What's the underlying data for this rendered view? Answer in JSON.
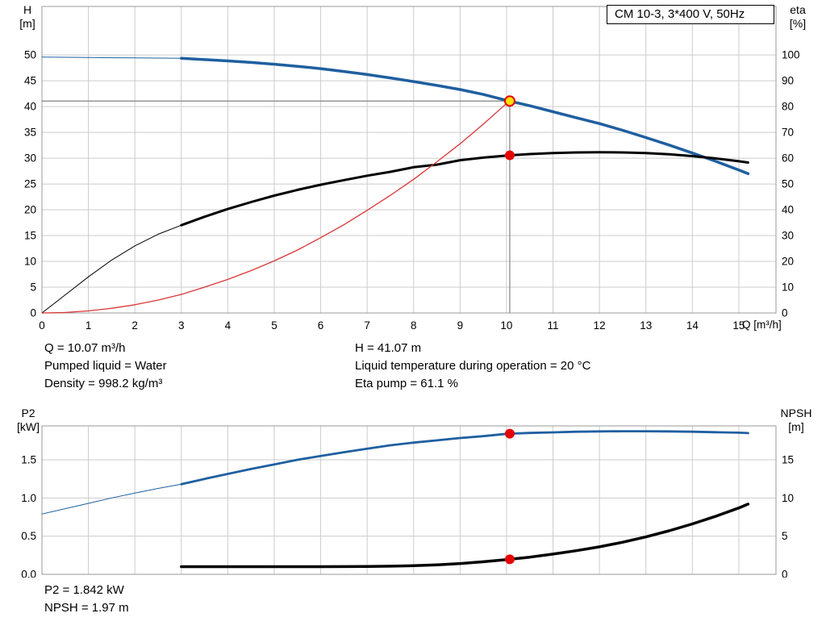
{
  "title_box": {
    "label": "CM 10-3, 3*400 V, 50Hz"
  },
  "operating_point": {
    "q": "Q = 10.07 m³/h",
    "h": "H = 41.07 m",
    "pumped_liquid": "Pumped liquid = Water",
    "liquid_temp": "Liquid temperature during operation = 20 °C",
    "density": "Density = 998.2 kg/m³",
    "eta_pump": "Eta pump = 61.1 %",
    "p2": "P2 = 1.842 kW",
    "npsh": "NPSH = 1.97 m"
  },
  "colors": {
    "curve_blue": "#1f5fa0",
    "curve_black": "#000000",
    "curve_red": "#d93636",
    "marker_red": "#e60000",
    "marker_yellow": "#ffe000",
    "grid": "#cccccc",
    "frame": "#999999",
    "crosshair": "#808080"
  },
  "chart_data": [
    {
      "type": "line",
      "title": "CM 10-3, 3*400 V, 50Hz",
      "x_axis": {
        "label": "Q [m³/h]",
        "min": 0,
        "max": 15.8,
        "decimals": 0,
        "show_tick_labels": true,
        "ticks": [
          0,
          1,
          2,
          3,
          4,
          5,
          6,
          7,
          8,
          9,
          10,
          11,
          12,
          13,
          14,
          15
        ]
      },
      "y_left": {
        "name": "H",
        "unit": "[m]",
        "min": 0,
        "max": 59.4,
        "decimals": 0,
        "ticks": [
          0,
          5,
          10,
          15,
          20,
          25,
          30,
          35,
          40,
          45,
          50
        ]
      },
      "y_right": {
        "name": "eta",
        "unit": "[%]",
        "min": 0,
        "max": 118.8,
        "decimals": 0,
        "ticks": [
          0,
          10,
          20,
          30,
          40,
          50,
          60,
          70,
          80,
          90,
          100
        ]
      },
      "crosshair": {
        "x": 10.07,
        "y": 41.07
      },
      "series": [
        {
          "name": "head-curve-thin",
          "axis": "left",
          "color": "#1f5fa0",
          "width": 1,
          "points": [
            [
              0,
              49.6
            ],
            [
              1,
              49.5
            ],
            [
              2,
              49.42
            ],
            [
              3,
              49.35
            ]
          ]
        },
        {
          "name": "head-curve",
          "axis": "left",
          "color": "#1f5fa0",
          "width": 3.5,
          "points": [
            [
              3,
              49.35
            ],
            [
              3.5,
              49.1
            ],
            [
              4,
              48.85
            ],
            [
              4.5,
              48.55
            ],
            [
              5,
              48.2
            ],
            [
              5.5,
              47.8
            ],
            [
              6,
              47.35
            ],
            [
              6.5,
              46.8
            ],
            [
              7,
              46.2
            ],
            [
              7.5,
              45.55
            ],
            [
              8,
              44.85
            ],
            [
              8.5,
              44.1
            ],
            [
              9,
              43.3
            ],
            [
              9.5,
              42.35
            ],
            [
              10,
              41.2
            ],
            [
              10.5,
              40.15
            ],
            [
              11,
              39.0
            ],
            [
              11.5,
              37.85
            ],
            [
              12,
              36.7
            ],
            [
              12.5,
              35.4
            ],
            [
              13,
              34.0
            ],
            [
              13.5,
              32.55
            ],
            [
              14,
              31.0
            ],
            [
              14.5,
              29.4
            ],
            [
              15,
              27.7
            ],
            [
              15.2,
              27.0
            ]
          ]
        },
        {
          "name": "eta-curve-thin",
          "axis": "right",
          "color": "#000000",
          "width": 1,
          "points": [
            [
              0,
              0
            ],
            [
              0.5,
              7
            ],
            [
              1,
              14
            ],
            [
              1.5,
              20.5
            ],
            [
              2,
              26
            ],
            [
              2.5,
              30.5
            ],
            [
              3,
              34
            ]
          ]
        },
        {
          "name": "eta-curve",
          "axis": "right",
          "color": "#000000",
          "width": 3,
          "points": [
            [
              3,
              34
            ],
            [
              3.5,
              37.3
            ],
            [
              4,
              40.3
            ],
            [
              4.5,
              43.0
            ],
            [
              5,
              45.5
            ],
            [
              5.5,
              47.7
            ],
            [
              6,
              49.7
            ],
            [
              6.5,
              51.5
            ],
            [
              7,
              53.2
            ],
            [
              7.5,
              54.7
            ],
            [
              8,
              56.5
            ],
            [
              8.5,
              57.5
            ],
            [
              9,
              59.2
            ],
            [
              9.5,
              60.2
            ],
            [
              10,
              61.0
            ],
            [
              10.5,
              61.6
            ],
            [
              11,
              62.0
            ],
            [
              11.5,
              62.2
            ],
            [
              12,
              62.3
            ],
            [
              12.5,
              62.2
            ],
            [
              13,
              62.0
            ],
            [
              13.5,
              61.5
            ],
            [
              14,
              60.8
            ],
            [
              14.5,
              59.9
            ],
            [
              15,
              58.8
            ],
            [
              15.2,
              58.3
            ]
          ]
        },
        {
          "name": "system-curve",
          "axis": "left",
          "color": "#d93636",
          "width": 1.3,
          "points": [
            [
              0,
              0
            ],
            [
              0.5,
              0.1
            ],
            [
              1,
              0.4
            ],
            [
              1.5,
              0.9
            ],
            [
              2,
              1.6
            ],
            [
              2.5,
              2.5
            ],
            [
              3,
              3.6
            ],
            [
              3.5,
              5.0
            ],
            [
              4,
              6.5
            ],
            [
              4.5,
              8.2
            ],
            [
              5,
              10.1
            ],
            [
              5.5,
              12.2
            ],
            [
              6,
              14.6
            ],
            [
              6.5,
              17.1
            ],
            [
              7,
              19.9
            ],
            [
              7.5,
              22.8
            ],
            [
              8,
              25.9
            ],
            [
              8.5,
              29.3
            ],
            [
              9,
              32.8
            ],
            [
              9.5,
              36.6
            ],
            [
              10,
              40.6
            ],
            [
              10.07,
              41.07
            ]
          ]
        }
      ],
      "markers": [
        {
          "name": "eta-point",
          "x": 10.07,
          "y": 61.1,
          "axis": "right",
          "fill": "#e60000",
          "stroke": "#e60000",
          "r": 5.5
        },
        {
          "name": "duty-point",
          "x": 10.07,
          "y": 41.07,
          "axis": "left",
          "fill": "#ffe000",
          "stroke": "#e60000",
          "r": 6,
          "ring": true
        }
      ]
    },
    {
      "type": "line",
      "title": "P2 / NPSH",
      "x_axis": {
        "label": "",
        "min": 0,
        "max": 15.8,
        "decimals": 0,
        "show_tick_labels": false,
        "ticks": [
          0,
          1,
          2,
          3,
          4,
          5,
          6,
          7,
          8,
          9,
          10,
          11,
          12,
          13,
          14,
          15
        ]
      },
      "y_left": {
        "name": "P2",
        "unit": "[kW]",
        "min": 0,
        "max": 1.944,
        "decimals": 1,
        "ticks": [
          0,
          0.5,
          1,
          1.5
        ]
      },
      "y_right": {
        "name": "NPSH",
        "unit": "[m]",
        "min": 0,
        "max": 19.44,
        "decimals": 0,
        "ticks": [
          0,
          5,
          10,
          15
        ]
      },
      "series": [
        {
          "name": "p2-curve-thin",
          "axis": "left",
          "color": "#1f5fa0",
          "width": 1,
          "points": [
            [
              0,
              0.79
            ],
            [
              0.5,
              0.86
            ],
            [
              1,
              0.93
            ],
            [
              1.5,
              1.0
            ],
            [
              2,
              1.065
            ],
            [
              2.5,
              1.125
            ],
            [
              3,
              1.18
            ]
          ]
        },
        {
          "name": "p2-curve",
          "axis": "left",
          "color": "#1f5fa0",
          "width": 2.8,
          "points": [
            [
              3,
              1.18
            ],
            [
              3.5,
              1.25
            ],
            [
              4,
              1.315
            ],
            [
              4.5,
              1.38
            ],
            [
              5,
              1.44
            ],
            [
              5.5,
              1.5
            ],
            [
              6,
              1.55
            ],
            [
              6.5,
              1.6
            ],
            [
              7,
              1.645
            ],
            [
              7.5,
              1.69
            ],
            [
              8,
              1.725
            ],
            [
              8.5,
              1.755
            ],
            [
              9,
              1.785
            ],
            [
              9.5,
              1.81
            ],
            [
              10,
              1.84
            ],
            [
              10.5,
              1.852
            ],
            [
              11,
              1.86
            ],
            [
              11.5,
              1.868
            ],
            [
              12,
              1.872
            ],
            [
              12.5,
              1.874
            ],
            [
              13,
              1.874
            ],
            [
              13.5,
              1.872
            ],
            [
              14,
              1.868
            ],
            [
              14.5,
              1.862
            ],
            [
              15,
              1.855
            ],
            [
              15.2,
              1.85
            ]
          ]
        },
        {
          "name": "npsh-curve",
          "axis": "right",
          "color": "#000000",
          "width": 3.5,
          "points": [
            [
              3,
              1.0
            ],
            [
              3.5,
              1.0
            ],
            [
              4,
              1.0
            ],
            [
              4.5,
              1.0
            ],
            [
              5,
              1.0
            ],
            [
              5.5,
              1.0
            ],
            [
              6,
              1.0
            ],
            [
              6.5,
              1.01
            ],
            [
              7,
              1.03
            ],
            [
              7.5,
              1.07
            ],
            [
              8,
              1.13
            ],
            [
              8.5,
              1.25
            ],
            [
              9,
              1.42
            ],
            [
              9.5,
              1.65
            ],
            [
              10,
              1.93
            ],
            [
              10.5,
              2.25
            ],
            [
              11,
              2.65
            ],
            [
              11.5,
              3.1
            ],
            [
              12,
              3.6
            ],
            [
              12.5,
              4.2
            ],
            [
              13,
              4.9
            ],
            [
              13.5,
              5.7
            ],
            [
              14,
              6.6
            ],
            [
              14.5,
              7.6
            ],
            [
              15,
              8.7
            ],
            [
              15.2,
              9.2
            ]
          ]
        }
      ],
      "markers": [
        {
          "name": "p2-point",
          "x": 10.07,
          "y": 1.842,
          "axis": "left",
          "fill": "#e60000",
          "stroke": "#e60000",
          "r": 5.5
        },
        {
          "name": "npsh-point",
          "x": 10.07,
          "y": 1.97,
          "axis": "right",
          "fill": "#e60000",
          "stroke": "#e60000",
          "r": 5.5
        }
      ]
    }
  ]
}
